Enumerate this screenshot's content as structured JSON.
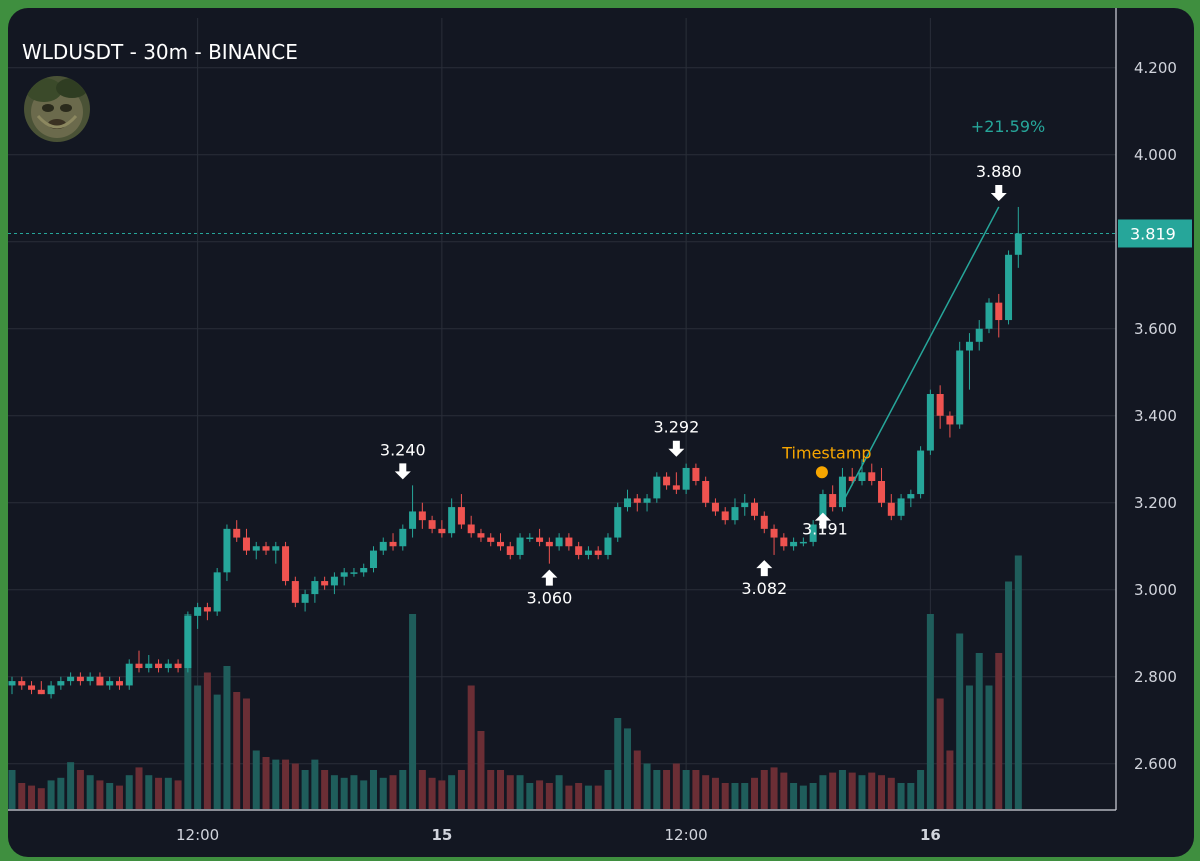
{
  "header": {
    "title": "WLDUSDT - 30m - BINANCE"
  },
  "avatar": {
    "icon": "tree-face-avatar-icon"
  },
  "colors": {
    "up": "#26a69a",
    "down": "#ef5350",
    "up_vol": "#1f5d5b",
    "down_vol": "#6b2e35",
    "accent": "#f7a600"
  },
  "chart_data": {
    "type": "candlestick",
    "y_ticks": [
      "4.200",
      "4.000",
      "3.600",
      "3.400",
      "3.200",
      "3.000",
      "2.800",
      "2.600"
    ],
    "y_tick_values": [
      4.2,
      4.0,
      3.6,
      3.4,
      3.2,
      3.0,
      2.8,
      2.6
    ],
    "ylim": [
      2.5,
      4.3
    ],
    "x_ticks": [
      {
        "label": "12:00",
        "index": 19,
        "bold": false
      },
      {
        "label": "15",
        "index": 44,
        "bold": true
      },
      {
        "label": "12:00",
        "index": 69,
        "bold": false
      },
      {
        "label": "16",
        "index": 94,
        "bold": true
      }
    ],
    "last_price": {
      "label": "3.819",
      "value": 3.819
    },
    "measure": {
      "label": "+21.59%",
      "from_index": 85,
      "from_value": 3.2,
      "to_index": 101,
      "to_value": 3.88
    },
    "timestamp_marker": {
      "label": "Timestamp",
      "index": 83,
      "value": 3.27
    },
    "annotations": [
      {
        "label": "3.240",
        "index": 40,
        "value": 3.24,
        "type": "high"
      },
      {
        "label": "3.060",
        "index": 55,
        "value": 3.06,
        "type": "low"
      },
      {
        "label": "3.292",
        "index": 68,
        "value": 3.292,
        "type": "high"
      },
      {
        "label": "3.082",
        "index": 77,
        "value": 3.082,
        "type": "low"
      },
      {
        "label": "3.191",
        "index": 83,
        "value": 3.191,
        "type": "low"
      },
      {
        "label": "3.880",
        "index": 101,
        "value": 3.88,
        "type": "high"
      }
    ],
    "candles": [
      [
        2.78,
        2.8,
        2.76,
        2.79,
        0.3
      ],
      [
        2.79,
        2.8,
        2.77,
        2.78,
        0.2
      ],
      [
        2.78,
        2.79,
        2.76,
        2.77,
        0.18
      ],
      [
        2.77,
        2.79,
        2.76,
        2.76,
        0.16
      ],
      [
        2.76,
        2.79,
        2.75,
        2.78,
        0.22
      ],
      [
        2.78,
        2.8,
        2.77,
        2.79,
        0.24
      ],
      [
        2.79,
        2.81,
        2.78,
        2.8,
        0.36
      ],
      [
        2.8,
        2.81,
        2.78,
        2.79,
        0.3
      ],
      [
        2.79,
        2.81,
        2.78,
        2.8,
        0.26
      ],
      [
        2.8,
        2.81,
        2.78,
        2.78,
        0.22
      ],
      [
        2.78,
        2.8,
        2.77,
        2.79,
        0.2
      ],
      [
        2.79,
        2.8,
        2.77,
        2.78,
        0.18
      ],
      [
        2.78,
        2.84,
        2.77,
        2.83,
        0.26
      ],
      [
        2.83,
        2.86,
        2.81,
        2.82,
        0.32
      ],
      [
        2.82,
        2.85,
        2.81,
        2.83,
        0.26
      ],
      [
        2.83,
        2.84,
        2.81,
        2.82,
        0.24
      ],
      [
        2.82,
        2.84,
        2.81,
        2.83,
        0.24
      ],
      [
        2.83,
        2.84,
        2.81,
        2.82,
        0.22
      ],
      [
        2.82,
        2.95,
        2.81,
        2.94,
        1.5
      ],
      [
        2.94,
        2.97,
        2.91,
        2.96,
        0.95
      ],
      [
        2.96,
        2.97,
        2.93,
        2.95,
        1.05
      ],
      [
        2.95,
        3.05,
        2.94,
        3.04,
        0.88
      ],
      [
        3.04,
        3.15,
        3.02,
        3.14,
        1.1
      ],
      [
        3.14,
        3.16,
        3.11,
        3.12,
        0.9
      ],
      [
        3.12,
        3.14,
        3.08,
        3.09,
        0.85
      ],
      [
        3.09,
        3.11,
        3.07,
        3.1,
        0.45
      ],
      [
        3.1,
        3.11,
        3.08,
        3.09,
        0.4
      ],
      [
        3.09,
        3.11,
        3.06,
        3.1,
        0.38
      ],
      [
        3.1,
        3.11,
        3.01,
        3.02,
        0.38
      ],
      [
        3.02,
        3.03,
        2.96,
        2.97,
        0.35
      ],
      [
        2.97,
        3.0,
        2.95,
        2.99,
        0.3
      ],
      [
        2.99,
        3.03,
        2.97,
        3.02,
        0.38
      ],
      [
        3.02,
        3.03,
        3.0,
        3.01,
        0.3
      ],
      [
        3.01,
        3.04,
        2.99,
        3.03,
        0.26
      ],
      [
        3.03,
        3.05,
        3.01,
        3.04,
        0.24
      ],
      [
        3.04,
        3.05,
        3.03,
        3.04,
        0.26
      ],
      [
        3.04,
        3.06,
        3.03,
        3.05,
        0.22
      ],
      [
        3.05,
        3.1,
        3.04,
        3.09,
        0.3
      ],
      [
        3.09,
        3.12,
        3.08,
        3.11,
        0.24
      ],
      [
        3.11,
        3.13,
        3.09,
        3.1,
        0.26
      ],
      [
        3.1,
        3.15,
        3.09,
        3.14,
        0.3
      ],
      [
        3.14,
        3.24,
        3.12,
        3.18,
        1.5
      ],
      [
        3.18,
        3.2,
        3.14,
        3.16,
        0.3
      ],
      [
        3.16,
        3.17,
        3.13,
        3.14,
        0.24
      ],
      [
        3.14,
        3.16,
        3.12,
        3.13,
        0.22
      ],
      [
        3.13,
        3.21,
        3.12,
        3.19,
        0.26
      ],
      [
        3.19,
        3.22,
        3.14,
        3.15,
        0.3
      ],
      [
        3.15,
        3.17,
        3.12,
        3.13,
        0.95
      ],
      [
        3.13,
        3.14,
        3.11,
        3.12,
        0.6
      ],
      [
        3.12,
        3.13,
        3.1,
        3.11,
        0.3
      ],
      [
        3.11,
        3.13,
        3.09,
        3.1,
        0.3
      ],
      [
        3.1,
        3.11,
        3.07,
        3.08,
        0.26
      ],
      [
        3.08,
        3.13,
        3.07,
        3.12,
        0.26
      ],
      [
        3.12,
        3.13,
        3.11,
        3.12,
        0.2
      ],
      [
        3.12,
        3.14,
        3.1,
        3.11,
        0.22
      ],
      [
        3.11,
        3.12,
        3.06,
        3.1,
        0.2
      ],
      [
        3.1,
        3.13,
        3.09,
        3.12,
        0.26
      ],
      [
        3.12,
        3.13,
        3.09,
        3.1,
        0.18
      ],
      [
        3.1,
        3.11,
        3.07,
        3.08,
        0.2
      ],
      [
        3.08,
        3.1,
        3.07,
        3.09,
        0.18
      ],
      [
        3.09,
        3.1,
        3.07,
        3.08,
        0.18
      ],
      [
        3.08,
        3.13,
        3.07,
        3.12,
        0.3
      ],
      [
        3.12,
        3.2,
        3.11,
        3.19,
        0.7
      ],
      [
        3.19,
        3.23,
        3.18,
        3.21,
        0.62
      ],
      [
        3.21,
        3.22,
        3.18,
        3.2,
        0.45
      ],
      [
        3.2,
        3.22,
        3.18,
        3.21,
        0.35
      ],
      [
        3.21,
        3.27,
        3.2,
        3.26,
        0.3
      ],
      [
        3.26,
        3.27,
        3.23,
        3.24,
        0.3
      ],
      [
        3.24,
        3.27,
        3.22,
        3.23,
        0.35
      ],
      [
        3.23,
        3.29,
        3.22,
        3.28,
        0.3
      ],
      [
        3.28,
        3.29,
        3.24,
        3.25,
        0.3
      ],
      [
        3.25,
        3.26,
        3.19,
        3.2,
        0.26
      ],
      [
        3.2,
        3.21,
        3.17,
        3.18,
        0.24
      ],
      [
        3.18,
        3.19,
        3.15,
        3.16,
        0.2
      ],
      [
        3.16,
        3.21,
        3.15,
        3.19,
        0.2
      ],
      [
        3.19,
        3.22,
        3.17,
        3.2,
        0.2
      ],
      [
        3.2,
        3.21,
        3.16,
        3.17,
        0.24
      ],
      [
        3.17,
        3.18,
        3.13,
        3.14,
        0.3
      ],
      [
        3.14,
        3.15,
        3.08,
        3.12,
        0.32
      ],
      [
        3.12,
        3.13,
        3.09,
        3.1,
        0.28
      ],
      [
        3.1,
        3.12,
        3.09,
        3.11,
        0.2
      ],
      [
        3.11,
        3.12,
        3.1,
        3.11,
        0.18
      ],
      [
        3.11,
        3.16,
        3.1,
        3.15,
        0.2
      ],
      [
        3.15,
        3.23,
        3.14,
        3.22,
        0.26
      ],
      [
        3.22,
        3.24,
        3.18,
        3.19,
        0.28
      ],
      [
        3.19,
        3.28,
        3.18,
        3.26,
        0.3
      ],
      [
        3.26,
        3.28,
        3.24,
        3.25,
        0.28
      ],
      [
        3.25,
        3.3,
        3.24,
        3.27,
        0.26
      ],
      [
        3.27,
        3.29,
        3.24,
        3.25,
        0.28
      ],
      [
        3.25,
        3.28,
        3.19,
        3.2,
        0.26
      ],
      [
        3.2,
        3.22,
        3.16,
        3.17,
        0.24
      ],
      [
        3.17,
        3.22,
        3.16,
        3.21,
        0.2
      ],
      [
        3.21,
        3.23,
        3.19,
        3.22,
        0.2
      ],
      [
        3.22,
        3.33,
        3.21,
        3.32,
        0.3
      ],
      [
        3.32,
        3.46,
        3.31,
        3.45,
        1.5
      ],
      [
        3.45,
        3.47,
        3.37,
        3.4,
        0.85
      ],
      [
        3.4,
        3.41,
        3.35,
        3.38,
        0.45
      ],
      [
        3.38,
        3.57,
        3.37,
        3.55,
        1.35
      ],
      [
        3.55,
        3.59,
        3.46,
        3.57,
        0.95
      ],
      [
        3.57,
        3.62,
        3.55,
        3.6,
        1.2
      ],
      [
        3.6,
        3.67,
        3.59,
        3.66,
        0.95
      ],
      [
        3.66,
        3.68,
        3.58,
        3.62,
        1.2
      ],
      [
        3.62,
        3.78,
        3.61,
        3.77,
        1.75
      ],
      [
        3.77,
        3.88,
        3.74,
        3.819,
        1.95
      ]
    ]
  }
}
